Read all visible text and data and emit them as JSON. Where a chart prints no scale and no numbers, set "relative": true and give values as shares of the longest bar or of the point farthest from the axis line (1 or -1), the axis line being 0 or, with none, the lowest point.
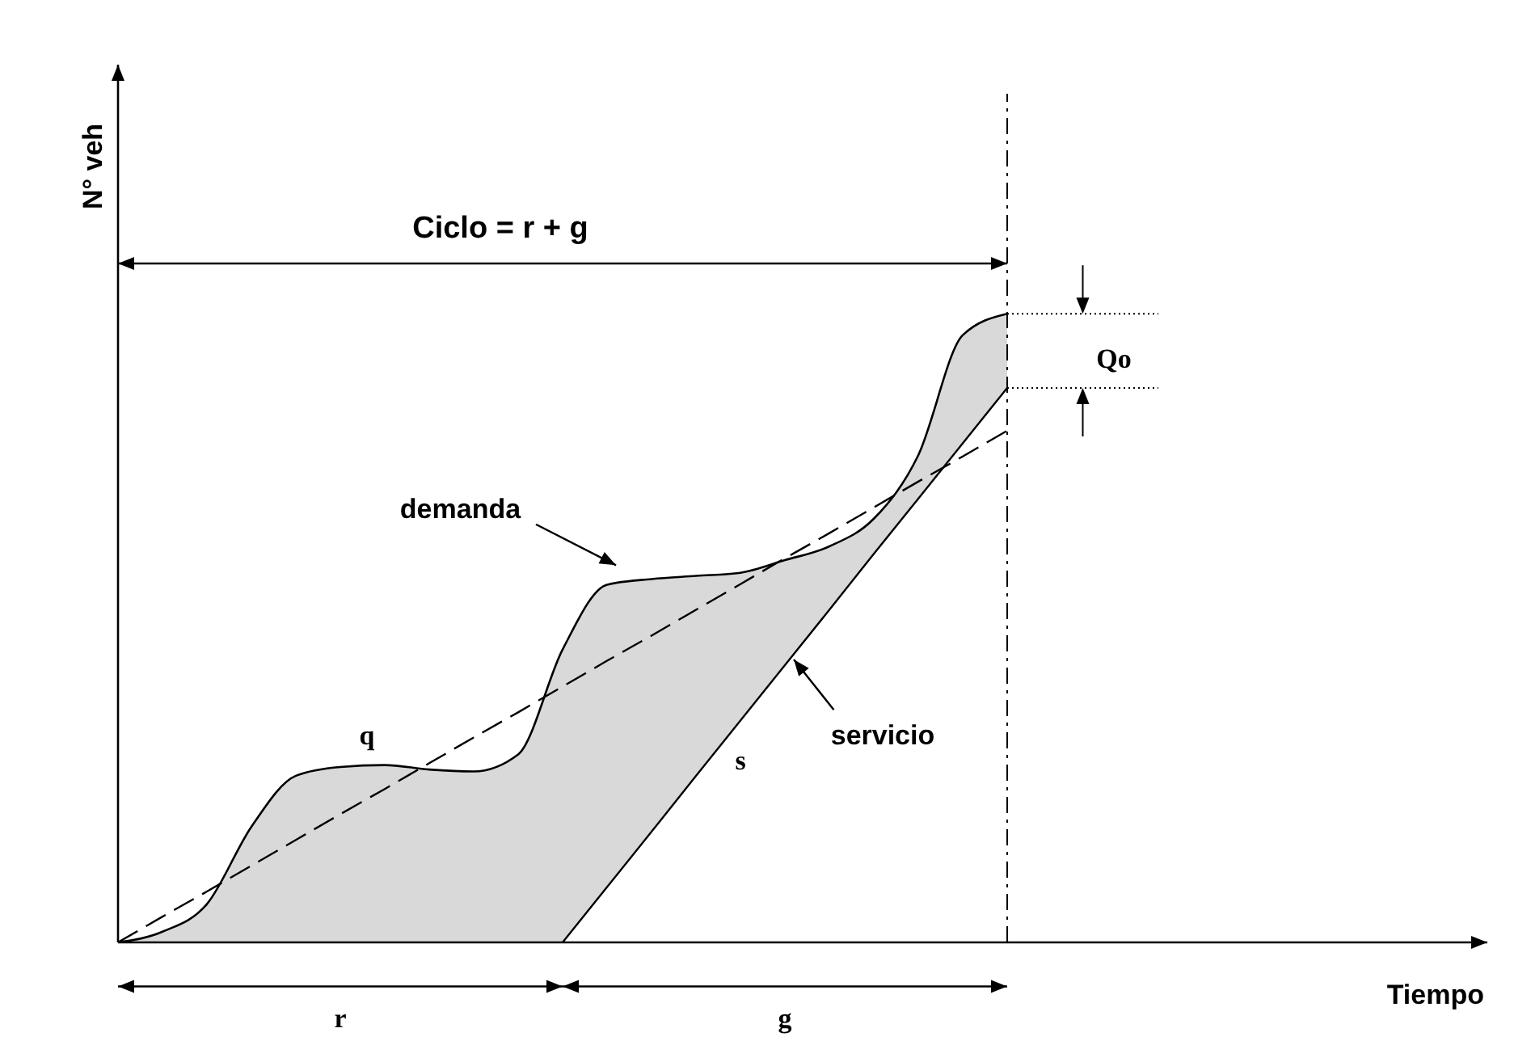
{
  "chart_data": {
    "type": "line",
    "relative": true,
    "xlabel": "Tiempo",
    "ylabel": "N° veh",
    "categories": [
      null,
      null,
      null,
      null,
      null,
      null,
      null,
      null,
      null,
      null,
      null,
      null,
      null,
      null,
      null,
      null,
      null,
      null,
      null,
      null,
      null,
      null,
      null,
      null,
      null,
      null,
      null,
      null,
      null,
      null,
      null
    ],
    "series": [
      {
        "type": "area",
        "color": "#d9d9d9",
        "values": [
          0,
          0.017,
          0.061,
          0.184,
          0.265,
          0.279,
          0.282,
          0.275,
          0.272,
          0.299,
          0.466,
          0.569,
          0.578,
          0.583,
          0.588,
          0.608,
          0.63,
          0.674,
          0.775,
          0.966,
          1,
          null,
          null,
          null,
          null,
          null,
          null,
          null,
          null,
          null,
          null
        ]
      },
      {
        "type": "line",
        "color": "#000000",
        "values": [
          null,
          null,
          null,
          null,
          null,
          null,
          null,
          null,
          null,
          null,
          0,
          0.088,
          0.176,
          0.265,
          0.353,
          0.441,
          0.529,
          0.618,
          0.706,
          0.794,
          0.882,
          null,
          null,
          null,
          null,
          null,
          null,
          null,
          null,
          null,
          null
        ]
      },
      {
        "color": "#000000",
        "line_style": "dashed",
        "values": [
          0,
          0.041,
          0.081,
          0.122,
          0.163,
          0.204,
          0.244,
          0.285,
          0.326,
          0.366,
          0.407,
          0.448,
          0.488,
          0.529,
          0.57,
          0.611,
          0.651,
          0.692,
          0.733,
          0.773,
          0.814,
          null,
          null,
          null,
          null,
          null,
          null,
          null,
          null,
          null,
          null
        ]
      }
    ],
    "annotations": [
      "Ciclo = r + g",
      "demanda",
      "servicio",
      "q",
      "s",
      "r",
      "g",
      "Qo"
    ]
  }
}
